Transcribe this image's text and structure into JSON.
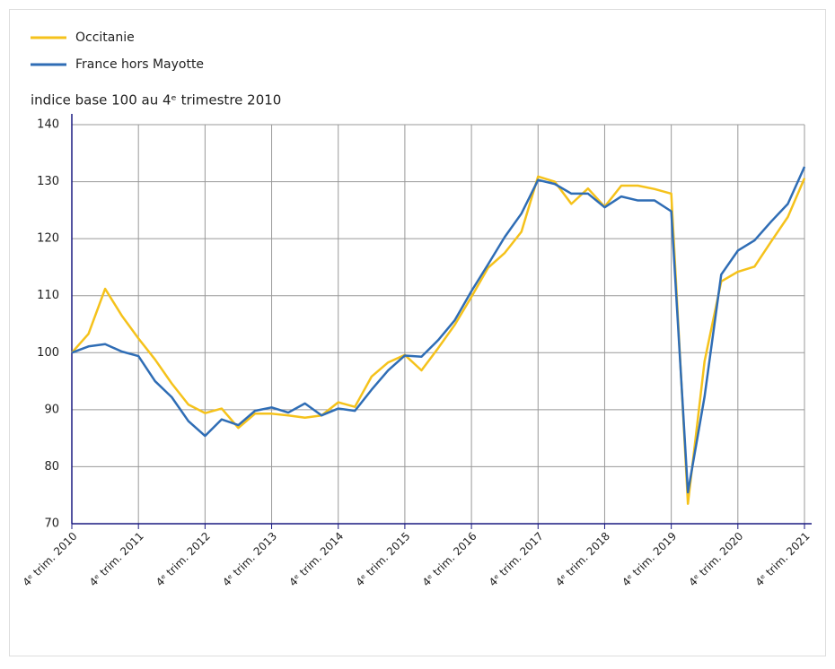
{
  "chart_data": {
    "type": "line",
    "title": "indice base 100 au 4ᵉ trimestre 2010",
    "categories": [
      "4ᵉ trim. 2010",
      null,
      null,
      null,
      "4ᵉ trim. 2011",
      null,
      null,
      null,
      "4ᵉ trim. 2012",
      null,
      null,
      null,
      "4ᵉ trim. 2013",
      null,
      null,
      null,
      "4ᵉ trim. 2014",
      null,
      null,
      null,
      "4ᵉ trim. 2015",
      null,
      null,
      null,
      "4ᵉ trim. 2016",
      null,
      null,
      null,
      "4ᵉ trim. 2017",
      null,
      null,
      null,
      "4ᵉ trim. 2018",
      null,
      null,
      null,
      "4ᵉ trim. 2019",
      null,
      null,
      null,
      "4ᵉ trim. 2020",
      null,
      null,
      null,
      "4ᵉ trim. 2021"
    ],
    "series": [
      {
        "name": "Occitanie",
        "color": "#f5c21b",
        "values": [
          100,
          103.3,
          111.2,
          106.5,
          102.5,
          98.8,
          94.6,
          90.9,
          89.4,
          90.2,
          86.8,
          89.3,
          89.3,
          89.0,
          88.6,
          89.0,
          91.3,
          90.5,
          95.8,
          98.3,
          99.6,
          96.9,
          100.8,
          104.9,
          109.8,
          114.9,
          117.5,
          121.2,
          130.9,
          130.0,
          126.1,
          128.8,
          125.6,
          129.3,
          129.3,
          128.7,
          127.9,
          73.5,
          98.5,
          112.5,
          114.2,
          115.1,
          119.5,
          123.8,
          130.6
        ]
      },
      {
        "name": "France hors Mayotte",
        "color": "#2f6db5",
        "values": [
          100,
          101.1,
          101.5,
          100.2,
          99.4,
          95.0,
          92.2,
          88.0,
          85.4,
          88.3,
          87.3,
          89.8,
          90.4,
          89.5,
          91.1,
          89.0,
          90.2,
          89.8,
          93.5,
          96.9,
          99.5,
          99.3,
          102.2,
          105.7,
          110.8,
          115.5,
          120.3,
          124.4,
          130.3,
          129.6,
          127.9,
          127.9,
          125.5,
          127.4,
          126.7,
          126.7,
          124.8,
          75.5,
          92.3,
          113.7,
          117.9,
          119.7,
          123.0,
          126.1,
          132.6
        ]
      }
    ],
    "ylim": [
      70,
      140
    ],
    "yticks": [
      70,
      80,
      90,
      100,
      110,
      120,
      130,
      140
    ],
    "grid": true,
    "legend": "top-left"
  }
}
